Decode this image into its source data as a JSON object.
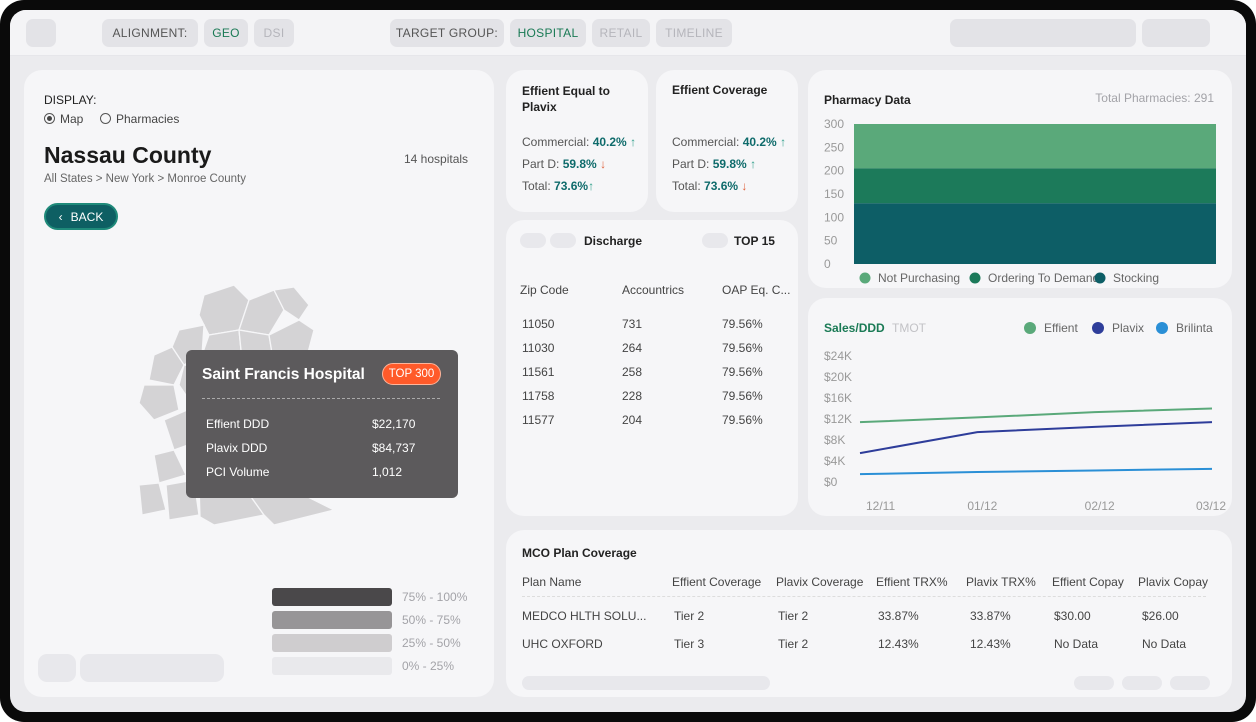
{
  "topbar": {
    "alignment_label": "ALIGNMENT:",
    "alignment_options": [
      "GEO",
      "DSI"
    ],
    "target_group_label": "TARGET GROUP:",
    "target_group_options": [
      "HOSPITAL",
      "RETAIL",
      "TIMELINE"
    ]
  },
  "map_panel": {
    "display_label": "DISPLAY:",
    "display_options": [
      "Map",
      "Pharmacies"
    ],
    "county_title": "Nassau County",
    "hospital_count": "14 hospitals",
    "breadcrumb": "All States > New York > Monroe County",
    "back_label": "BACK",
    "tooltip": {
      "title": "Saint Francis Hospital",
      "badge": "TOP 300",
      "rows": [
        {
          "label": "Effient DDD",
          "value": "$22,170"
        },
        {
          "label": "Plavix DDD",
          "value": "$84,737"
        },
        {
          "label": "PCI Volume",
          "value": "1,012"
        }
      ]
    },
    "legend": [
      "75% - 100%",
      "50% - 75%",
      "25% - 50%",
      "0% - 25%"
    ],
    "legend_colors": [
      "#4a484a",
      "#979597",
      "#cfcdcf",
      "#e9e9ec"
    ]
  },
  "kpi_equal": {
    "title": "Effient Equal to Plavix",
    "rows": [
      {
        "label": "Commercial:",
        "value": "40.2%",
        "trend": "↑",
        "dir": "up"
      },
      {
        "label": "Part D:",
        "value": "59.8%",
        "trend": "↓",
        "dir": "down"
      },
      {
        "label": "Total:",
        "value": "73.6%",
        "trend": "↑",
        "dir": "up"
      }
    ]
  },
  "kpi_coverage": {
    "title": "Effient Coverage",
    "rows": [
      {
        "label": "Commercial:",
        "value": "40.2%",
        "trend": "↑",
        "dir": "up"
      },
      {
        "label": "Part D:",
        "value": "59.8%",
        "trend": "↑",
        "dir": "up"
      },
      {
        "label": "Total:",
        "value": "73.6%",
        "trend": "↓",
        "dir": "down"
      }
    ]
  },
  "discharge": {
    "title": "Discharge",
    "filter": "TOP 15",
    "columns": [
      "Zip Code",
      "Accountrics",
      "OAP Eq. C..."
    ],
    "rows": [
      [
        "11050",
        "731",
        "79.56%"
      ],
      [
        "11030",
        "264",
        "79.56%"
      ],
      [
        "11561",
        "258",
        "79.56%"
      ],
      [
        "11758",
        "228",
        "79.56%"
      ],
      [
        "11577",
        "204",
        "79.56%"
      ]
    ]
  },
  "pharmacy": {
    "title": "Pharmacy Data",
    "total": "Total Pharmacies: 291"
  },
  "sales": {
    "title": "Sales/DDD",
    "alt_tab": "TMOT"
  },
  "mco": {
    "title": "MCO Plan Coverage",
    "columns": [
      "Plan Name",
      "Effient Coverage",
      "Plavix Coverage",
      "Effient TRX%",
      "Plavix TRX%",
      "Effient Copay",
      "Plavix Copay"
    ],
    "rows": [
      [
        "MEDCO HLTH SOLU...",
        "Tier 2",
        "Tier 2",
        "33.87%",
        "33.87%",
        "$30.00",
        "$26.00"
      ],
      [
        "UHC OXFORD",
        "Tier 3",
        "Tier 2",
        "12.43%",
        "12.43%",
        "No Data",
        "No Data"
      ]
    ]
  },
  "colors": {
    "accent": "#0e5f63",
    "not_purchasing": "#5aa97a",
    "ordering": "#1c7a5a",
    "stocking": "#0d5e66",
    "effient": "#5aa97a",
    "plavix": "#2e3d9a",
    "brilinta": "#2a8fd6"
  },
  "chart_data": [
    {
      "type": "area",
      "title": "Pharmacy Data",
      "ylim": [
        0,
        300
      ],
      "yticks": [
        "300",
        "250",
        "200",
        "150",
        "100",
        "50",
        "0"
      ],
      "series": [
        {
          "name": "Not Purchasing",
          "values": [
            300
          ]
        },
        {
          "name": "Ordering To Demand",
          "values": [
            205
          ]
        },
        {
          "name": "Stocking",
          "values": [
            130
          ]
        }
      ],
      "legend": [
        "Not Purchasing",
        "Ordering To Demand",
        "Stocking"
      ]
    },
    {
      "type": "line",
      "title": "Sales/DDD",
      "categories": [
        "12/11",
        "01/12",
        "02/12",
        "03/12"
      ],
      "ylim": [
        0,
        24000
      ],
      "yticks": [
        "$24K",
        "$20K",
        "$16K",
        "$12K",
        "$8K",
        "$4K",
        "$0"
      ],
      "series": [
        {
          "name": "Effient",
          "values": [
            11400,
            12300,
            13300,
            14000
          ]
        },
        {
          "name": "Plavix",
          "values": [
            5500,
            9500,
            10500,
            11400
          ]
        },
        {
          "name": "Brilinta",
          "values": [
            1500,
            1900,
            2200,
            2500
          ]
        }
      ],
      "legend": [
        "Effient",
        "Plavix",
        "Brilinta"
      ]
    }
  ]
}
